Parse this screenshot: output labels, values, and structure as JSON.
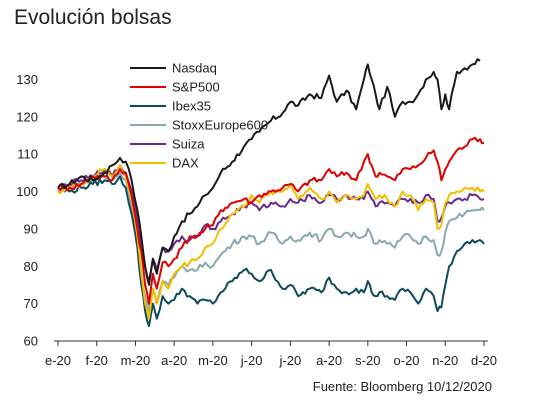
{
  "chart_data": {
    "type": "line",
    "title": "Evolución bolsas",
    "xlabel": "",
    "ylabel": "",
    "ylim": [
      60,
      140
    ],
    "yticks": [
      60,
      70,
      80,
      90,
      100,
      110,
      120,
      130
    ],
    "categories": [
      "e-20",
      "f-20",
      "m-20",
      "a-20",
      "m-20",
      "j-20",
      "j-20",
      "a-20",
      "s-20",
      "o-20",
      "n-20",
      "d-20"
    ],
    "x_ticks": [
      0,
      1,
      2,
      3,
      4,
      5,
      6,
      7,
      8,
      9,
      10,
      11
    ],
    "source": "Fuente: Bloomberg 10/12/2020",
    "legend_position": "top-left",
    "grid": false,
    "series": [
      {
        "name": "Nasdaq",
        "color": "#1a1a1a",
        "x": [
          0,
          0.3,
          0.6,
          0.9,
          1.2,
          1.4,
          1.6,
          1.75,
          1.9,
          2.05,
          2.15,
          2.25,
          2.35,
          2.45,
          2.55,
          2.7,
          2.85,
          3.0,
          3.2,
          3.4,
          3.6,
          3.8,
          4.0,
          4.2,
          4.5,
          4.8,
          5.0,
          5.2,
          5.5,
          5.8,
          6.0,
          6.2,
          6.5,
          6.8,
          7.0,
          7.2,
          7.45,
          7.7,
          7.9,
          8.0,
          8.1,
          8.2,
          8.3,
          8.5,
          8.7,
          8.9,
          9.1,
          9.3,
          9.5,
          9.7,
          9.8,
          9.9,
          10.0,
          10.1,
          10.3,
          10.5,
          10.7,
          10.9
        ],
        "values": [
          101,
          102,
          104,
          103,
          105,
          107,
          109,
          108,
          103,
          95,
          88,
          80,
          75,
          82,
          78,
          85,
          84,
          88,
          92,
          94,
          96,
          99,
          101,
          105,
          108,
          112,
          114,
          116,
          119,
          121,
          124,
          123,
          126,
          125,
          131,
          124,
          127,
          122,
          130,
          134,
          130,
          126,
          122,
          128,
          120,
          124,
          124,
          126,
          130,
          132,
          130,
          122,
          126,
          122,
          132,
          133,
          134,
          135
        ]
      },
      {
        "name": "S&P500",
        "color": "#e00000",
        "x": [
          0,
          0.3,
          0.6,
          0.9,
          1.2,
          1.4,
          1.6,
          1.75,
          1.9,
          2.05,
          2.15,
          2.25,
          2.35,
          2.45,
          2.55,
          2.7,
          2.85,
          3.0,
          3.2,
          3.4,
          3.6,
          3.8,
          4.0,
          4.2,
          4.5,
          4.8,
          5.0,
          5.2,
          5.5,
          5.8,
          6.0,
          6.2,
          6.5,
          6.8,
          7.0,
          7.2,
          7.45,
          7.7,
          7.9,
          8.0,
          8.1,
          8.2,
          8.3,
          8.5,
          8.7,
          8.9,
          9.1,
          9.3,
          9.5,
          9.7,
          9.8,
          9.9,
          10.0,
          10.1,
          10.3,
          10.5,
          10.7,
          10.9,
          11.0
        ],
        "values": [
          101,
          101,
          102,
          104,
          104,
          103,
          106,
          105,
          99,
          90,
          84,
          75,
          70,
          78,
          74,
          81,
          80,
          82,
          85,
          88,
          88,
          90,
          91,
          95,
          97,
          98,
          97,
          99,
          100,
          101,
          102,
          100,
          103,
          103,
          106,
          104,
          105,
          103,
          108,
          110,
          107,
          104,
          105,
          104,
          103,
          106,
          106,
          107,
          109,
          111,
          108,
          103,
          106,
          108,
          111,
          112,
          114,
          114,
          113
        ]
      },
      {
        "name": "Ibex35",
        "color": "#0d4a5a",
        "x": [
          0,
          0.3,
          0.6,
          0.9,
          1.2,
          1.4,
          1.6,
          1.75,
          1.9,
          2.05,
          2.15,
          2.25,
          2.35,
          2.45,
          2.55,
          2.7,
          2.85,
          3.0,
          3.2,
          3.4,
          3.6,
          3.8,
          4.0,
          4.2,
          4.5,
          4.8,
          5.0,
          5.2,
          5.5,
          5.8,
          6.0,
          6.2,
          6.5,
          6.8,
          7.0,
          7.2,
          7.45,
          7.7,
          7.9,
          8.0,
          8.1,
          8.2,
          8.3,
          8.5,
          8.7,
          8.9,
          9.1,
          9.3,
          9.5,
          9.7,
          9.8,
          9.9,
          10.0,
          10.1,
          10.3,
          10.5,
          10.7,
          10.9,
          11.0
        ],
        "values": [
          101,
          100,
          101,
          102,
          103,
          102,
          104,
          101,
          94,
          85,
          75,
          68,
          64,
          70,
          66,
          72,
          70,
          71,
          74,
          72,
          70,
          71,
          70,
          73,
          76,
          79,
          78,
          76,
          79,
          74,
          75,
          72,
          74,
          73,
          77,
          74,
          73,
          74,
          73,
          76,
          73,
          72,
          73,
          72,
          71,
          74,
          73,
          70,
          74,
          72,
          68,
          69,
          75,
          80,
          84,
          86,
          87,
          87,
          86
        ]
      },
      {
        "name": "StoxxEurope600",
        "color": "#8ba7b0",
        "x": [
          0,
          0.3,
          0.6,
          0.9,
          1.2,
          1.4,
          1.6,
          1.75,
          1.9,
          2.05,
          2.15,
          2.25,
          2.35,
          2.45,
          2.55,
          2.7,
          2.85,
          3.0,
          3.2,
          3.4,
          3.6,
          3.8,
          4.0,
          4.2,
          4.5,
          4.8,
          5.0,
          5.2,
          5.5,
          5.8,
          6.0,
          6.2,
          6.5,
          6.8,
          7.0,
          7.2,
          7.45,
          7.7,
          7.9,
          8.0,
          8.1,
          8.2,
          8.3,
          8.5,
          8.7,
          8.9,
          9.1,
          9.3,
          9.5,
          9.7,
          9.8,
          9.9,
          10.0,
          10.1,
          10.3,
          10.5,
          10.7,
          10.9,
          11.0
        ],
        "values": [
          100,
          101,
          102,
          103,
          104,
          103,
          105,
          103,
          96,
          87,
          78,
          72,
          68,
          74,
          70,
          76,
          75,
          77,
          80,
          79,
          79,
          81,
          80,
          83,
          86,
          88,
          88,
          86,
          89,
          86,
          88,
          87,
          89,
          87,
          90,
          88,
          89,
          88,
          88,
          90,
          88,
          86,
          87,
          86,
          85,
          88,
          88,
          86,
          88,
          87,
          83,
          84,
          89,
          92,
          93,
          94,
          95,
          95,
          95
        ]
      },
      {
        "name": "Suiza",
        "color": "#6b2a8c",
        "x": [
          0,
          0.3,
          0.6,
          0.9,
          1.2,
          1.4,
          1.6,
          1.75,
          1.9,
          2.05,
          2.15,
          2.25,
          2.35,
          2.45,
          2.55,
          2.7,
          2.85,
          3.0,
          3.2,
          3.4,
          3.6,
          3.8,
          4.0,
          4.2,
          4.5,
          4.8,
          5.0,
          5.2,
          5.5,
          5.8,
          6.0,
          6.2,
          6.5,
          6.8,
          7.0,
          7.2,
          7.45,
          7.7,
          7.9,
          8.0,
          8.1,
          8.2,
          8.3,
          8.5,
          8.7,
          8.9,
          9.1,
          9.3,
          9.5,
          9.7,
          9.8,
          9.9,
          10.0,
          10.1,
          10.3,
          10.5,
          10.7,
          10.9,
          11.0
        ],
        "values": [
          101,
          102,
          103,
          104,
          106,
          104,
          107,
          105,
          100,
          93,
          86,
          80,
          76,
          82,
          79,
          85,
          84,
          86,
          88,
          87,
          88,
          91,
          90,
          92,
          94,
          96,
          97,
          95,
          97,
          96,
          98,
          97,
          99,
          97,
          99,
          98,
          99,
          98,
          98,
          100,
          98,
          96,
          97,
          97,
          96,
          98,
          98,
          97,
          99,
          98,
          92,
          93,
          96,
          97,
          98,
          98,
          99,
          98,
          98
        ]
      },
      {
        "name": "DAX",
        "color": "#f2be00",
        "x": [
          0,
          0.3,
          0.6,
          0.9,
          1.2,
          1.4,
          1.6,
          1.75,
          1.9,
          2.05,
          2.15,
          2.25,
          2.35,
          2.45,
          2.55,
          2.7,
          2.85,
          3.0,
          3.2,
          3.4,
          3.6,
          3.8,
          4.0,
          4.2,
          4.5,
          4.8,
          5.0,
          5.2,
          5.5,
          5.8,
          6.0,
          6.2,
          6.5,
          6.8,
          7.0,
          7.2,
          7.45,
          7.7,
          7.9,
          8.0,
          8.1,
          8.2,
          8.3,
          8.5,
          8.7,
          8.9,
          9.1,
          9.3,
          9.5,
          9.7,
          9.8,
          9.9,
          10.0,
          10.1,
          10.3,
          10.5,
          10.7,
          10.9,
          11.0
        ],
        "values": [
          100,
          101,
          102,
          104,
          106,
          104,
          107,
          104,
          98,
          88,
          78,
          70,
          66,
          74,
          70,
          76,
          74,
          78,
          80,
          81,
          82,
          85,
          86,
          90,
          94,
          96,
          99,
          97,
          100,
          100,
          102,
          98,
          101,
          98,
          100,
          97,
          99,
          98,
          99,
          102,
          100,
          98,
          99,
          98,
          96,
          100,
          99,
          95,
          98,
          97,
          90,
          91,
          97,
          99,
          100,
          101,
          101,
          100,
          100
        ]
      }
    ]
  }
}
